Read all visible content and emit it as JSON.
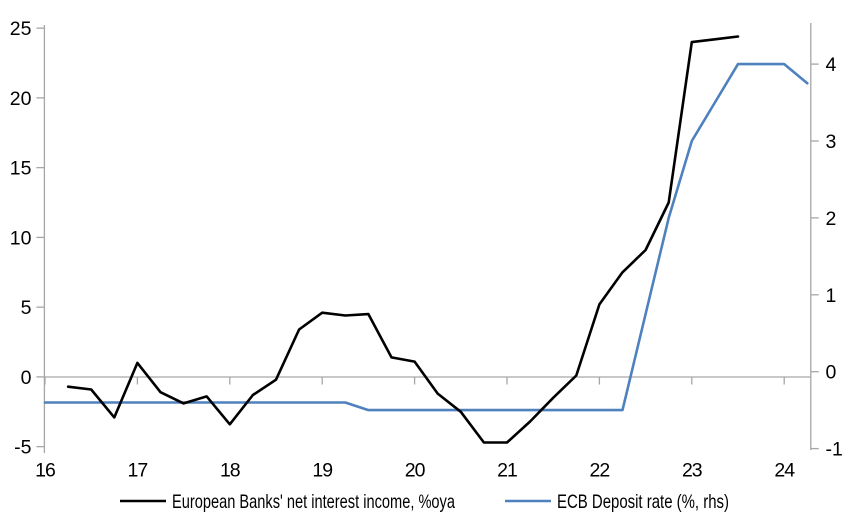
{
  "page": {
    "background": "#ffffff"
  },
  "chart_data": {
    "type": "line",
    "title": "",
    "xlabel": "",
    "ylabel_left": "",
    "ylabel_right": "",
    "grid": false,
    "zero_line": true,
    "legend_position": "bottom",
    "x_axis": {
      "tick_labels": [
        "16",
        "17",
        "18",
        "19",
        "20",
        "21",
        "22",
        "23",
        "24"
      ],
      "tick_positions": [
        16,
        17,
        18,
        19,
        20,
        21,
        22,
        23,
        24
      ],
      "range": [
        16,
        24.3
      ]
    },
    "left_axis": {
      "tick_labels": [
        "-5",
        "0",
        "5",
        "10",
        "15",
        "20",
        "25"
      ],
      "tick_values": [
        -5,
        0,
        5,
        10,
        15,
        20,
        25
      ],
      "range": [
        -5,
        25
      ]
    },
    "right_axis": {
      "tick_labels": [
        "-1",
        "0",
        "1",
        "2",
        "3",
        "4"
      ],
      "tick_values": [
        -1,
        0,
        1,
        2,
        3,
        4
      ],
      "range": [
        -1,
        4.5
      ]
    },
    "colors": {
      "net_interest_income": "#000000",
      "ecb_deposit_rate": "#4E81BD",
      "axis": "#A6A6A6",
      "text": "#000000"
    },
    "series": [
      {
        "name": "European Banks' net interest income, %oya",
        "axis": "left",
        "color_key": "net_interest_income",
        "x": [
          16.25,
          16.5,
          16.75,
          17,
          17.25,
          17.5,
          17.75,
          18,
          18.25,
          18.5,
          18.75,
          19,
          19.25,
          19.5,
          19.75,
          20,
          20.25,
          20.5,
          20.75,
          21,
          21.25,
          21.5,
          21.75,
          22,
          22.25,
          22.5,
          22.75,
          23,
          23.25,
          23.5
        ],
        "values": [
          -0.7,
          -0.9,
          -2.9,
          1.0,
          -1.1,
          -1.9,
          -1.4,
          -3.4,
          -1.3,
          -0.2,
          3.4,
          4.6,
          4.4,
          4.5,
          1.4,
          1.1,
          -1.2,
          -2.5,
          -4.7,
          -4.7,
          -3.2,
          -1.5,
          0.1,
          5.2,
          7.5,
          9.1,
          12.5,
          24.0,
          24.2,
          24.4
        ]
      },
      {
        "name": "ECB Deposit rate (%, rhs)",
        "axis": "right",
        "color_key": "ecb_deposit_rate",
        "x": [
          16,
          16.25,
          16.5,
          16.75,
          17,
          17.25,
          17.5,
          17.75,
          18,
          18.25,
          18.5,
          18.75,
          19,
          19.25,
          19.5,
          19.75,
          20,
          20.25,
          20.5,
          20.75,
          21,
          21.25,
          21.5,
          21.75,
          22,
          22.25,
          22.5,
          22.75,
          23,
          23.25,
          23.5,
          23.75,
          24,
          24.25
        ],
        "values": [
          -0.4,
          -0.4,
          -0.4,
          -0.4,
          -0.4,
          -0.4,
          -0.4,
          -0.4,
          -0.4,
          -0.4,
          -0.4,
          -0.4,
          -0.4,
          -0.4,
          -0.5,
          -0.5,
          -0.5,
          -0.5,
          -0.5,
          -0.5,
          -0.5,
          -0.5,
          -0.5,
          -0.5,
          -0.5,
          -0.5,
          0.75,
          2.0,
          3.0,
          3.5,
          4.0,
          4.0,
          4.0,
          3.75
        ]
      }
    ]
  }
}
